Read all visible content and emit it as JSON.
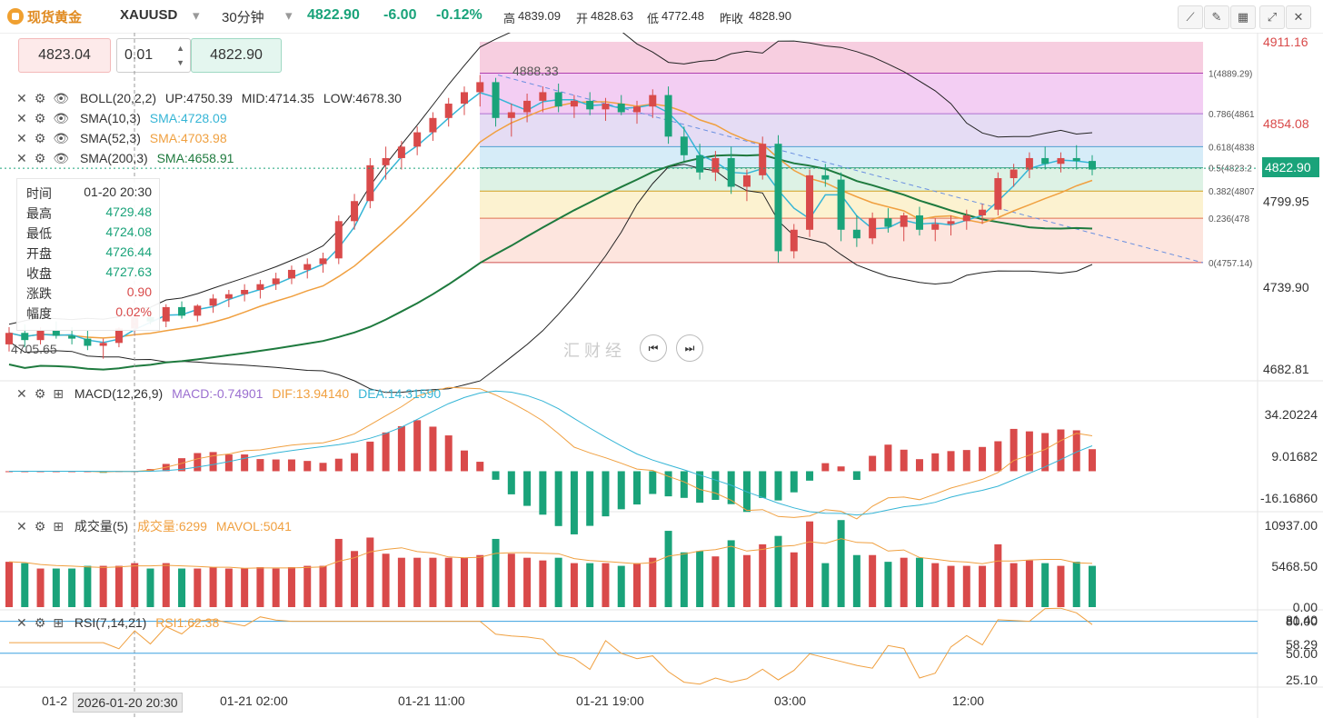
{
  "header": {
    "name": "现货黄金",
    "symbol": "XAUUSD",
    "period": "30分钟",
    "price": "4822.90",
    "change": "-6.00",
    "change_pct": "-0.12%",
    "high_label": "高",
    "high": "4839.09",
    "open_label": "开",
    "open": "4828.63",
    "low_label": "低",
    "low": "4772.48",
    "prev_label": "昨收",
    "prev": "4828.90"
  },
  "trade_box": {
    "sell": "4823.04",
    "lot": "0.01",
    "buy": "4822.90"
  },
  "legends": {
    "boll": {
      "name": "BOLL(20,2,2)",
      "up": "UP:4750.39",
      "mid": "MID:4714.35",
      "low": "LOW:4678.30"
    },
    "sma10": {
      "name": "SMA(10,3)",
      "value": "SMA:4728.09"
    },
    "sma52": {
      "name": "SMA(52,3)",
      "value": "SMA:4703.98"
    },
    "sma200": {
      "name": "SMA(200,3)",
      "value": "SMA:4658.91"
    }
  },
  "info": {
    "time_label": "时间",
    "time": "01-20 20:30",
    "high_label": "最高",
    "high": "4729.48",
    "low_label": "最低",
    "low": "4724.08",
    "open_label": "开盘",
    "open": "4726.44",
    "close_label": "收盘",
    "close": "4727.63",
    "chg_label": "涨跌",
    "chg": "0.90",
    "amp_label": "幅度",
    "amp": "0.02%"
  },
  "macd_legend": {
    "name": "MACD(12,26,9)",
    "macd": "MACD:-0.74901",
    "dif": "DIF:13.94140",
    "dea": "DEA:14.31590"
  },
  "vol_legend": {
    "name": "成交量(5)",
    "vol": "成交量:6299",
    "mavol": "MAVOL:5041"
  },
  "rsi_legend": {
    "name": "RSI(7,14,21)",
    "rsi": "RSI1:62.38"
  },
  "annotations": {
    "peak": "4888.33",
    "trough": "4705.65"
  },
  "fib_labels": [
    "1(4889.29)",
    "0.786(4861",
    "0.618(4838",
    "0.5(4823.2",
    "0.382(4807",
    "0.236(478",
    "0(4757.14)"
  ],
  "price_axis": [
    "4911.16",
    "4854.08",
    "4799.95",
    "4739.90",
    "4682.81"
  ],
  "current_price_tag": "4822.90",
  "macd_axis": [
    "34.20224",
    "9.01682",
    "-16.16860"
  ],
  "vol_axis": [
    "10937.00",
    "5468.50",
    "0.00"
  ],
  "rsi_axis": [
    "80.00",
    "81.40",
    "58.29",
    "50.00",
    "25.10"
  ],
  "time_axis": [
    "01-2",
    "01-21 02:00",
    "01-21 11:00",
    "01-21 19:00",
    "03:00",
    "12:00"
  ],
  "crosshair_date": "2026-01-20 20:30",
  "watermark": "汇 财 经",
  "colors": {
    "up": "#d94a4a",
    "down": "#1aa37a",
    "sma10": "#35b5d6",
    "sma52": "#f0a040",
    "sma200": "#1e7a3e",
    "boll": "#222222"
  },
  "chart_data": {
    "type": "candlestick",
    "interval": "30m",
    "ohlc_approx": [
      [
        4700,
        4712,
        4695,
        4708
      ],
      [
        4708,
        4714,
        4698,
        4703
      ],
      [
        4703,
        4712,
        4700,
        4710
      ],
      [
        4710,
        4716,
        4704,
        4706
      ],
      [
        4706,
        4712,
        4700,
        4704
      ],
      [
        4704,
        4710,
        4696,
        4699
      ],
      [
        4699,
        4704,
        4690,
        4701
      ],
      [
        4701,
        4712,
        4698,
        4711
      ],
      [
        4711,
        4722,
        4706,
        4719
      ],
      [
        4719,
        4726,
        4714,
        4716
      ],
      [
        4716,
        4728,
        4712,
        4726
      ],
      [
        4726,
        4730,
        4718,
        4720
      ],
      [
        4720,
        4728,
        4716,
        4727
      ],
      [
        4727,
        4735,
        4722,
        4732
      ],
      [
        4732,
        4738,
        4726,
        4735
      ],
      [
        4735,
        4742,
        4730,
        4738
      ],
      [
        4738,
        4745,
        4732,
        4742
      ],
      [
        4742,
        4750,
        4738,
        4746
      ],
      [
        4746,
        4755,
        4742,
        4752
      ],
      [
        4752,
        4760,
        4746,
        4756
      ],
      [
        4756,
        4764,
        4750,
        4760
      ],
      [
        4760,
        4790,
        4756,
        4786
      ],
      [
        4786,
        4805,
        4780,
        4800
      ],
      [
        4800,
        4830,
        4795,
        4825
      ],
      [
        4825,
        4838,
        4815,
        4830
      ],
      [
        4830,
        4842,
        4822,
        4838
      ],
      [
        4838,
        4852,
        4832,
        4848
      ],
      [
        4848,
        4862,
        4842,
        4858
      ],
      [
        4858,
        4872,
        4852,
        4868
      ],
      [
        4868,
        4880,
        4860,
        4876
      ],
      [
        4876,
        4888,
        4866,
        4883
      ],
      [
        4883,
        4886,
        4852,
        4858
      ],
      [
        4858,
        4868,
        4845,
        4862
      ],
      [
        4862,
        4875,
        4855,
        4870
      ],
      [
        4870,
        4880,
        4862,
        4876
      ],
      [
        4876,
        4882,
        4862,
        4866
      ],
      [
        4866,
        4874,
        4858,
        4870
      ],
      [
        4870,
        4876,
        4860,
        4864
      ],
      [
        4864,
        4872,
        4856,
        4868
      ],
      [
        4868,
        4874,
        4860,
        4862
      ],
      [
        4862,
        4870,
        4854,
        4866
      ],
      [
        4866,
        4878,
        4858,
        4874
      ],
      [
        4874,
        4880,
        4840,
        4845
      ],
      [
        4845,
        4852,
        4828,
        4832
      ],
      [
        4832,
        4840,
        4815,
        4820
      ],
      [
        4820,
        4835,
        4814,
        4830
      ],
      [
        4830,
        4838,
        4805,
        4810
      ],
      [
        4810,
        4822,
        4800,
        4818
      ],
      [
        4818,
        4845,
        4815,
        4840
      ],
      [
        4840,
        4846,
        4757,
        4765
      ],
      [
        4765,
        4784,
        4760,
        4780
      ],
      [
        4780,
        4822,
        4775,
        4818
      ],
      [
        4818,
        4826,
        4810,
        4815
      ],
      [
        4815,
        4820,
        4772,
        4780
      ],
      [
        4780,
        4790,
        4768,
        4774
      ],
      [
        4774,
        4792,
        4770,
        4788
      ],
      [
        4788,
        4795,
        4778,
        4782
      ],
      [
        4782,
        4792,
        4772,
        4790
      ],
      [
        4790,
        4796,
        4776,
        4780
      ],
      [
        4780,
        4788,
        4772,
        4784
      ],
      [
        4784,
        4790,
        4776,
        4786
      ],
      [
        4786,
        4794,
        4780,
        4790
      ],
      [
        4790,
        4798,
        4784,
        4794
      ],
      [
        4794,
        4820,
        4790,
        4816
      ],
      [
        4816,
        4826,
        4810,
        4822
      ],
      [
        4822,
        4834,
        4816,
        4830
      ],
      [
        4830,
        4838,
        4822,
        4826
      ],
      [
        4826,
        4834,
        4820,
        4830
      ],
      [
        4830,
        4839,
        4822,
        4828
      ],
      [
        4828,
        4832,
        4818,
        4822
      ]
    ],
    "fibonacci": [
      {
        "level": 1,
        "price": 4889.29
      },
      {
        "level": 0.5,
        "price": 4823.2
      },
      {
        "level": 0,
        "price": 4757.14
      }
    ],
    "price_ylim": [
      4682.81,
      4911.16
    ],
    "macd_ylim": [
      -16.1686,
      34.20224
    ],
    "vol_ylim": [
      0,
      10937
    ],
    "rsi_ylim": [
      25.1,
      81.4
    ],
    "rsi_levels": [
      80,
      50
    ]
  }
}
